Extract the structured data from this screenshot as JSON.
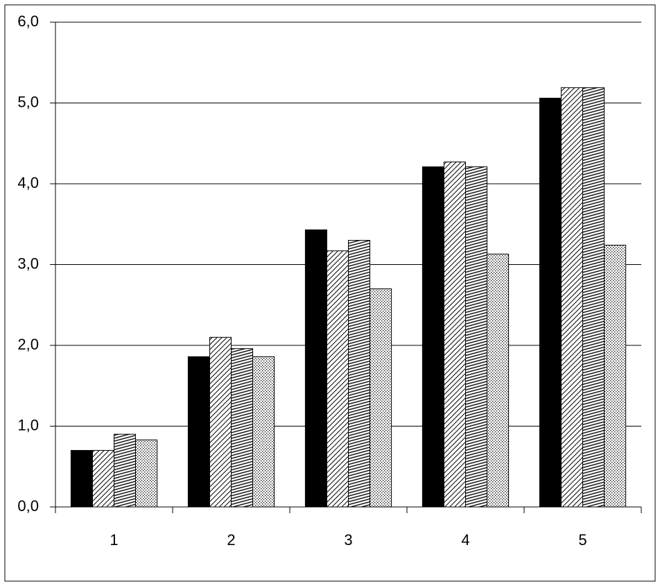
{
  "chart_data": {
    "type": "bar",
    "categories": [
      "1",
      "2",
      "3",
      "4",
      "5"
    ],
    "series": [
      {
        "color": "#000000",
        "pattern": "solid",
        "values": [
          0.7,
          1.86,
          3.43,
          4.21,
          5.06
        ]
      },
      {
        "color": "#000000",
        "pattern": "diagonal",
        "values": [
          0.7,
          2.1,
          3.17,
          4.27,
          5.19
        ]
      },
      {
        "color": "#000000",
        "pattern": "horizontal",
        "values": [
          0.9,
          1.96,
          3.3,
          4.21,
          5.19
        ]
      },
      {
        "color": "#000000",
        "pattern": "dots",
        "values": [
          0.83,
          1.86,
          2.7,
          3.13,
          3.24
        ]
      }
    ],
    "ylim": [
      0,
      6
    ],
    "yticks": [
      {
        "value": 0,
        "label": "0,0"
      },
      {
        "value": 1,
        "label": "1,0"
      },
      {
        "value": 2,
        "label": "2,0"
      },
      {
        "value": 3,
        "label": "3,0"
      },
      {
        "value": 4,
        "label": "4,0"
      },
      {
        "value": 5,
        "label": "5,0"
      },
      {
        "value": 6,
        "label": "6,0"
      }
    ],
    "grid": true
  }
}
